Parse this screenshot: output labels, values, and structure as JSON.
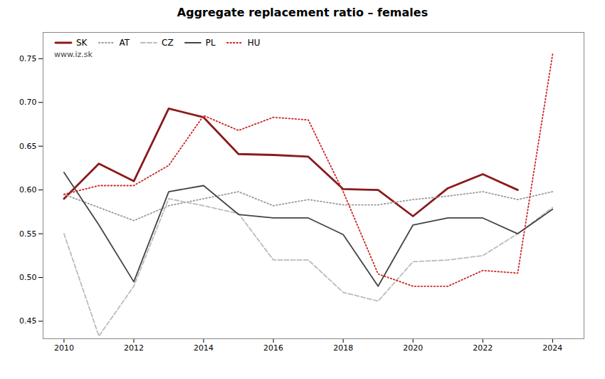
{
  "chart_data": {
    "type": "line",
    "title": "Aggregate replacement ratio – females",
    "annotations": [
      "www.iz.sk"
    ],
    "x": [
      2010,
      2011,
      2012,
      2013,
      2014,
      2015,
      2016,
      2017,
      2018,
      2019,
      2020,
      2021,
      2022,
      2023,
      2024
    ],
    "series": [
      {
        "name": "SK",
        "color": "#8b1a1a",
        "line_style": "solid",
        "values": [
          0.59,
          0.63,
          0.61,
          0.693,
          0.683,
          0.641,
          0.64,
          0.638,
          0.601,
          0.6,
          0.57,
          0.602,
          0.618,
          0.6,
          null
        ]
      },
      {
        "name": "AT",
        "color": "#999999",
        "line_style": "dotted",
        "values": [
          0.595,
          0.58,
          0.565,
          0.582,
          0.59,
          0.598,
          0.582,
          0.589,
          0.583,
          0.583,
          0.589,
          0.593,
          0.598,
          0.589,
          0.598
        ]
      },
      {
        "name": "CZ",
        "color": "#bbbbbb",
        "line_style": "dashed",
        "values": [
          0.55,
          0.433,
          0.49,
          0.59,
          0.582,
          0.573,
          0.52,
          0.52,
          0.483,
          0.473,
          0.518,
          0.52,
          0.525,
          0.55,
          0.58
        ]
      },
      {
        "name": "PL",
        "color": "#444444",
        "line_style": "solid",
        "values": [
          0.62,
          0.56,
          0.495,
          0.598,
          0.605,
          0.572,
          0.568,
          0.568,
          0.549,
          0.49,
          0.56,
          0.568,
          0.568,
          0.55,
          0.578
        ]
      },
      {
        "name": "HU",
        "color": "#cc2222",
        "line_style": "dotted",
        "values": [
          0.595,
          0.605,
          0.605,
          0.628,
          0.685,
          0.668,
          0.683,
          0.68,
          0.598,
          0.504,
          0.49,
          0.49,
          0.508,
          0.505,
          0.755
        ]
      }
    ],
    "xlim": [
      2009.4,
      2024.9
    ],
    "xticks": [
      2010,
      2012,
      2014,
      2016,
      2018,
      2020,
      2022,
      2024
    ],
    "ylim": [
      0.43,
      0.78
    ],
    "yticks": [
      0.45,
      {
        "value": 0.5,
        "label": "0.50"
      },
      0.55,
      {
        "value": 0.6,
        "label": "0.60"
      },
      0.65,
      {
        "value": 0.7,
        "label": "0.70"
      },
      0.75
    ],
    "grid": false,
    "legend": "upper left"
  }
}
